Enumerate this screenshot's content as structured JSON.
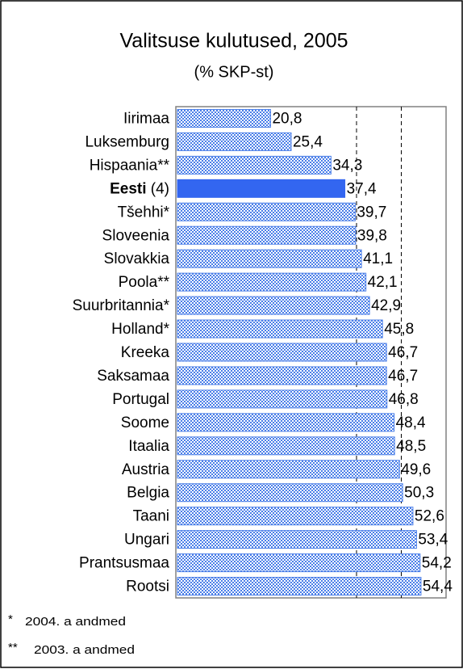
{
  "chart_data": {
    "type": "barh",
    "title": "Valitsuse kulutused, 2005",
    "subtitle": "(% SKP-st)",
    "categories": [
      "Iirimaa",
      "Luksemburg",
      "Hispaania**",
      "Eesti (4)",
      "Tšehhi*",
      "Sloveenia",
      "Slovakkia",
      "Poola**",
      "Suurbritannia*",
      "Holland*",
      "Kreeka",
      "Saksamaa",
      "Portugal",
      "Soome",
      "Itaalia",
      "Austria",
      "Belgia",
      "Taani",
      "Ungari",
      "Prantsusmaa",
      "Rootsi"
    ],
    "values": [
      20.8,
      25.4,
      34.3,
      37.4,
      39.7,
      39.8,
      41.1,
      42.1,
      42.9,
      45.8,
      46.7,
      46.7,
      46.8,
      48.4,
      48.5,
      49.6,
      50.3,
      52.6,
      53.4,
      54.2,
      54.4
    ],
    "value_labels": [
      "20,8",
      "25,4",
      "34,3",
      "37,4",
      "39,7",
      "39,8",
      "41,1",
      "42,1",
      "42,9",
      "45,8",
      "46,7",
      "46,7",
      "46,8",
      "48,4",
      "48,5",
      "49,6",
      "50,3",
      "52,6",
      "53,4",
      "54,2",
      "54,4"
    ],
    "color": "#4a7ee8",
    "highlight_index": 3,
    "highlight_color": "#3366f0",
    "xlim": [
      0,
      60
    ],
    "xticks": [
      40,
      50
    ],
    "grid": true,
    "footnotes": [
      "2004. a andmed",
      "2003. a andmed"
    ],
    "footnote_marks": [
      "*",
      "**"
    ]
  }
}
